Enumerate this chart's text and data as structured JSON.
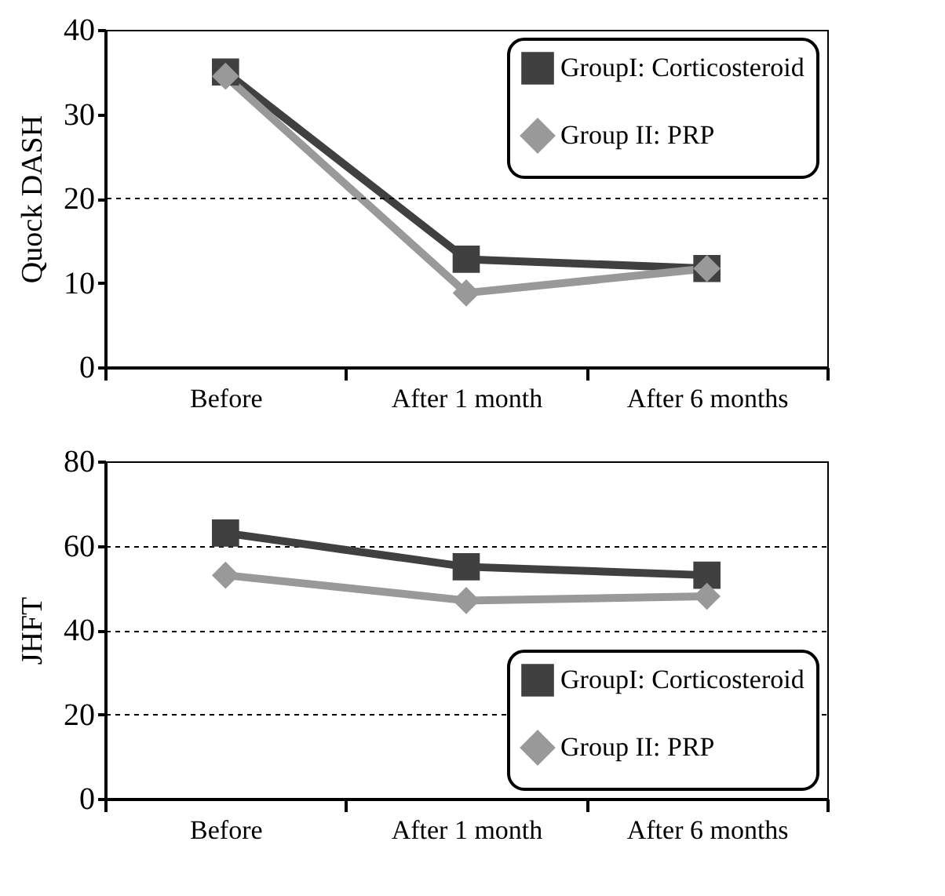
{
  "chart_data": [
    {
      "type": "line",
      "ylabel": "Quock DASH",
      "categories": [
        "Before",
        "After 1 month",
        "After 6 months"
      ],
      "ylim": [
        0,
        40
      ],
      "yticks": [
        0,
        10,
        20,
        30,
        40
      ],
      "legend": "top right",
      "ref_lines": [
        {
          "axis": "y",
          "value": 20,
          "line_style": "dashed"
        }
      ],
      "series": [
        {
          "name": "GroupI: Corticosteroid",
          "color": "#404040",
          "marker": "square",
          "values": [
            35,
            12.8,
            11.7
          ]
        },
        {
          "name": "Group II: PRP",
          "color": "#999999",
          "marker": "diamond",
          "values": [
            34.5,
            8.8,
            11.7
          ]
        }
      ]
    },
    {
      "type": "line",
      "ylabel": "JHFT",
      "categories": [
        "Before",
        "After 1 month",
        "After 6 months"
      ],
      "ylim": [
        0,
        80
      ],
      "yticks": [
        0,
        20,
        40,
        60,
        80
      ],
      "legend": "bottom right",
      "grid": "y",
      "series": [
        {
          "name": "GroupI: Corticosteroid",
          "color": "#404040",
          "marker": "square",
          "values": [
            63,
            55,
            53
          ]
        },
        {
          "name": "Group II: PRP",
          "color": "#999999",
          "marker": "diamond",
          "values": [
            53,
            47,
            48
          ]
        }
      ]
    }
  ]
}
